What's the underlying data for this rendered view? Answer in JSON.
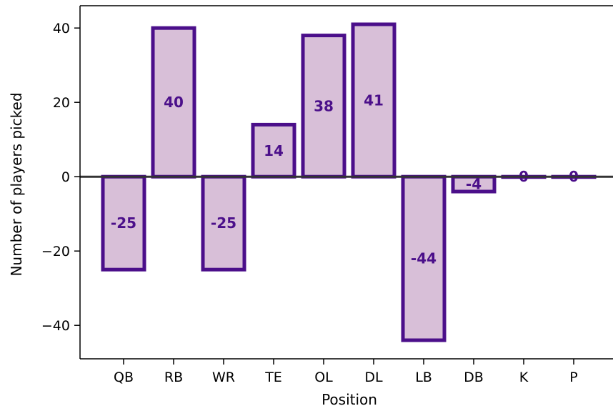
{
  "chart_data": {
    "type": "bar",
    "title": "",
    "xlabel": "Position",
    "ylabel": "Number of players picked",
    "categories": [
      "QB",
      "RB",
      "WR",
      "TE",
      "OL",
      "DL",
      "LB",
      "DB",
      "K",
      "P"
    ],
    "values": [
      -25,
      40,
      -25,
      14,
      38,
      41,
      -44,
      -4,
      0,
      0
    ],
    "data_labels": [
      "-25",
      "40",
      "-25",
      "14",
      "38",
      "41",
      "-44",
      "-4",
      "0",
      "0"
    ],
    "yticks": [
      -40,
      -20,
      0,
      20,
      40
    ],
    "ytick_labels": [
      "−40",
      "−20",
      "0",
      "20",
      "40"
    ],
    "ylim": [
      -49,
      46
    ],
    "grid": false,
    "zero_line": true,
    "colors": {
      "bar_fill": "#d8bfd8",
      "bar_edge": "#4b0f8a",
      "label": "#4b0f8a",
      "zero_line": "#333333",
      "axis": "#000000"
    }
  }
}
